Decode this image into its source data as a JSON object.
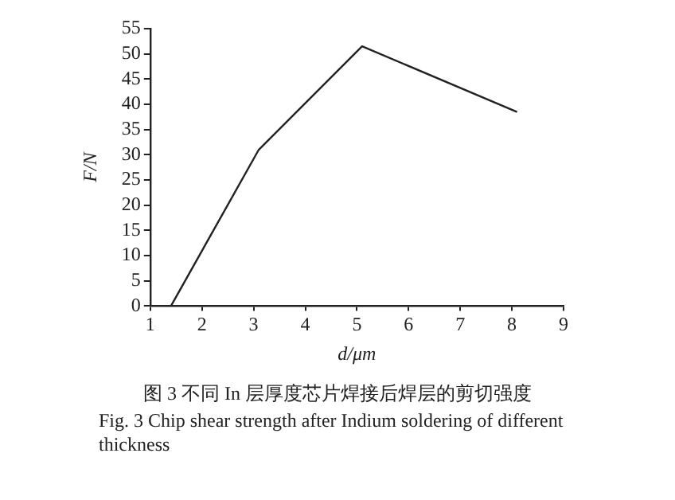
{
  "chart_data": {
    "type": "line",
    "xlabel": "d/μm",
    "ylabel": "F/N",
    "x": [
      1.4,
      3.1,
      5.1,
      8.1
    ],
    "series": [
      {
        "color": "#222222",
        "values": [
          0,
          31,
          51.5,
          38.5
        ]
      }
    ],
    "xlim": [
      1,
      9
    ],
    "xticks": [
      1,
      2,
      3,
      4,
      5,
      6,
      7,
      8,
      9
    ],
    "ylim": [
      0,
      55
    ],
    "yticks": [
      0,
      5,
      10,
      15,
      20,
      25,
      30,
      35,
      40,
      45,
      50,
      55
    ],
    "grid": false,
    "legend": false,
    "marker": "none",
    "line_style": "solid",
    "annotations": [
      "图 3 不同 In 层厚度芯片焊接后焊层的剪切强度",
      "Fig. 3 Chip shear strength after Indium soldering of different thickness"
    ]
  }
}
